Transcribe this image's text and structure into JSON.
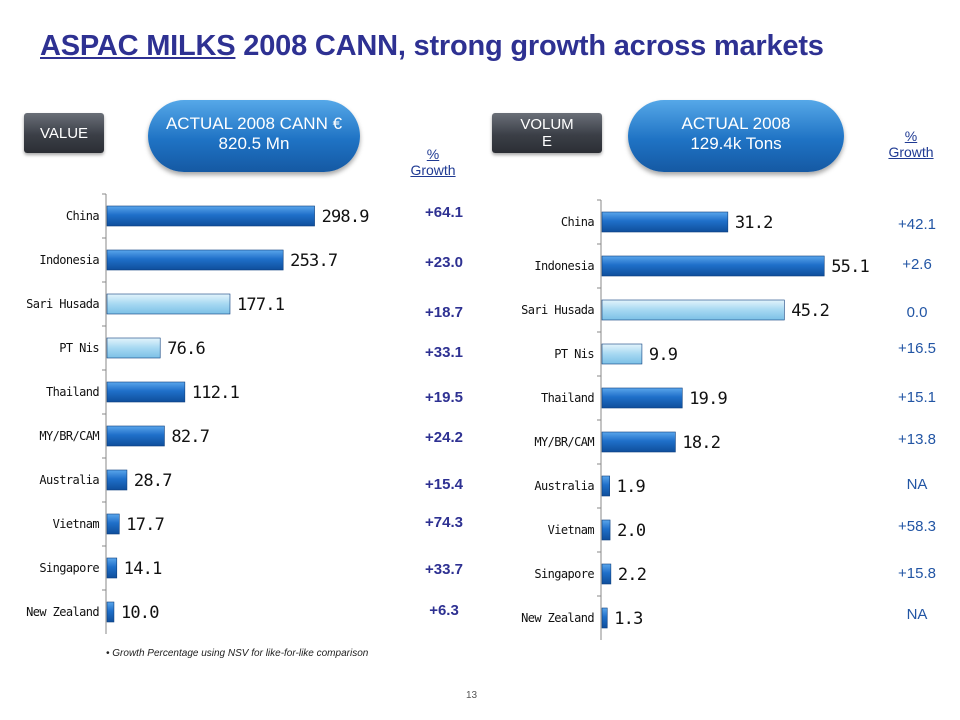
{
  "title_underlined": "ASPAC MILKS",
  "title_rest": " 2008 CANN, strong growth across markets",
  "left_tag": "VALUE",
  "right_tag": "VOLUM\nE",
  "left_pill": "ACTUAL 2008 CANN  € 820.5 Mn",
  "right_pill": "ACTUAL 2008\n129.4k Tons",
  "growth_header": "%\nGrowth",
  "footnote": "• Growth Percentage  using NSV for like-for-like comparison",
  "page_number": "13",
  "colors": {
    "title": "#2E3192",
    "bar_dark": "#1f6fc9",
    "bar_light": "#a6d8f2",
    "growth_left": "#2E3192",
    "growth_right": "#2255A4"
  },
  "chart_data": [
    {
      "type": "bar",
      "orientation": "horizontal",
      "categories": [
        "China",
        "Indonesia",
        "Sari Husada",
        "PT Nis",
        "Thailand",
        "MY/BR/CAM",
        "Australia",
        "Vietnam",
        "Singapore",
        "New Zealand"
      ],
      "values": [
        298.9,
        253.7,
        177.1,
        76.6,
        112.1,
        82.7,
        28.7,
        17.7,
        14.1,
        10.0
      ],
      "labels": [
        "298.9",
        "253.7",
        "177.1",
        "76.6",
        "112.1",
        "82.7",
        "28.7",
        "17.7",
        "14.1",
        "10.0"
      ],
      "highlight": [
        false,
        false,
        true,
        true,
        false,
        false,
        false,
        false,
        false,
        false
      ],
      "growth": [
        "+64.1",
        "+23.0",
        "+18.7",
        "+33.1",
        "+19.5",
        "+24.2",
        "+15.4",
        "+74.3",
        "+33.7",
        "+6.3"
      ],
      "xlim": [
        0,
        360
      ]
    },
    {
      "type": "bar",
      "orientation": "horizontal",
      "categories": [
        "China",
        "Indonesia",
        "Sari Husada",
        "PT Nis",
        "Thailand",
        "MY/BR/CAM",
        "Australia",
        "Vietnam",
        "Singapore",
        "New Zealand"
      ],
      "values": [
        31.2,
        55.1,
        45.2,
        9.9,
        19.9,
        18.2,
        1.9,
        2.0,
        2.2,
        1.3
      ],
      "labels": [
        "31.2",
        "55.1",
        "45.2",
        "9.9",
        "19.9",
        "18.2",
        "1.9",
        "2.0",
        "2.2",
        "1.3"
      ],
      "highlight": [
        false,
        false,
        true,
        true,
        false,
        false,
        false,
        false,
        false,
        false
      ],
      "growth": [
        "+42.1",
        "+2.6",
        "0.0",
        "+16.5",
        "+15.1",
        "+13.8",
        "NA",
        "+58.3",
        "+15.8",
        "NA"
      ],
      "xlim": [
        0,
        60
      ]
    }
  ]
}
